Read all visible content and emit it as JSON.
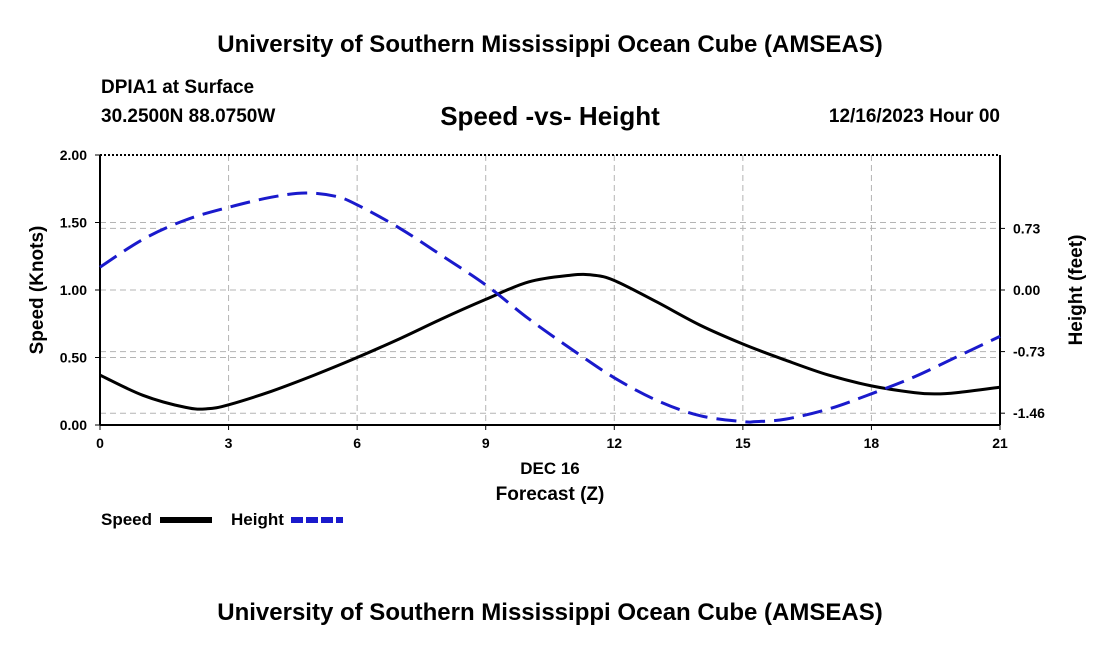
{
  "header": {
    "title": "University of Southern Mississippi Ocean Cube (AMSEAS)",
    "station": "DPIA1 at Surface",
    "coords": "30.2500N  88.0750W",
    "subtitle": "Speed -vs- Height",
    "datetime": "12/16/2023 Hour 00"
  },
  "footer": {
    "title": "University of Southern Mississippi Ocean Cube (AMSEAS)"
  },
  "chart_data": {
    "type": "line",
    "title": "Speed -vs- Height",
    "xlabel": "Forecast (Z)",
    "xdate": "DEC 16",
    "ylabel": "Speed (Knots)",
    "y2label": "Height (feet)",
    "xlim": [
      0,
      21
    ],
    "ylim": [
      0,
      2
    ],
    "y2lim": [
      -1.6,
      1.6
    ],
    "grid": true,
    "x_ticks": [
      "0",
      "3",
      "6",
      "9",
      "12",
      "15",
      "18",
      "21"
    ],
    "y_ticks": [
      "0.00",
      "0.50",
      "1.00",
      "1.50",
      "2.00"
    ],
    "y2_ticks": [
      "-1.46",
      "-0.73",
      "0.00",
      "0.73"
    ],
    "series": [
      {
        "name": "Speed",
        "axis": "left",
        "color": "#000000",
        "x": [
          0,
          1,
          2,
          2.5,
          3,
          4,
          5,
          6,
          7,
          8,
          9,
          10,
          11,
          11.5,
          12,
          13,
          14,
          15,
          16,
          17,
          18,
          19,
          19.5,
          20,
          21
        ],
        "values": [
          0.37,
          0.22,
          0.13,
          0.12,
          0.15,
          0.25,
          0.37,
          0.5,
          0.64,
          0.79,
          0.93,
          1.06,
          1.11,
          1.11,
          1.07,
          0.91,
          0.74,
          0.6,
          0.48,
          0.37,
          0.29,
          0.24,
          0.23,
          0.24,
          0.28
        ]
      },
      {
        "name": "Height",
        "axis": "right",
        "color": "#1a1acc",
        "x": [
          0,
          1,
          2,
          3,
          4,
          4.8,
          5.5,
          6,
          7,
          8,
          9,
          10,
          11,
          12,
          13,
          14,
          15,
          15.3,
          16,
          17,
          18,
          19,
          20,
          21
        ],
        "values": [
          0.27,
          0.6,
          0.83,
          0.98,
          1.1,
          1.15,
          1.11,
          1.01,
          0.73,
          0.4,
          0.06,
          -0.34,
          -0.7,
          -1.04,
          -1.31,
          -1.49,
          -1.56,
          -1.56,
          -1.53,
          -1.41,
          -1.23,
          -1.03,
          -0.79,
          -0.55
        ]
      }
    ]
  }
}
